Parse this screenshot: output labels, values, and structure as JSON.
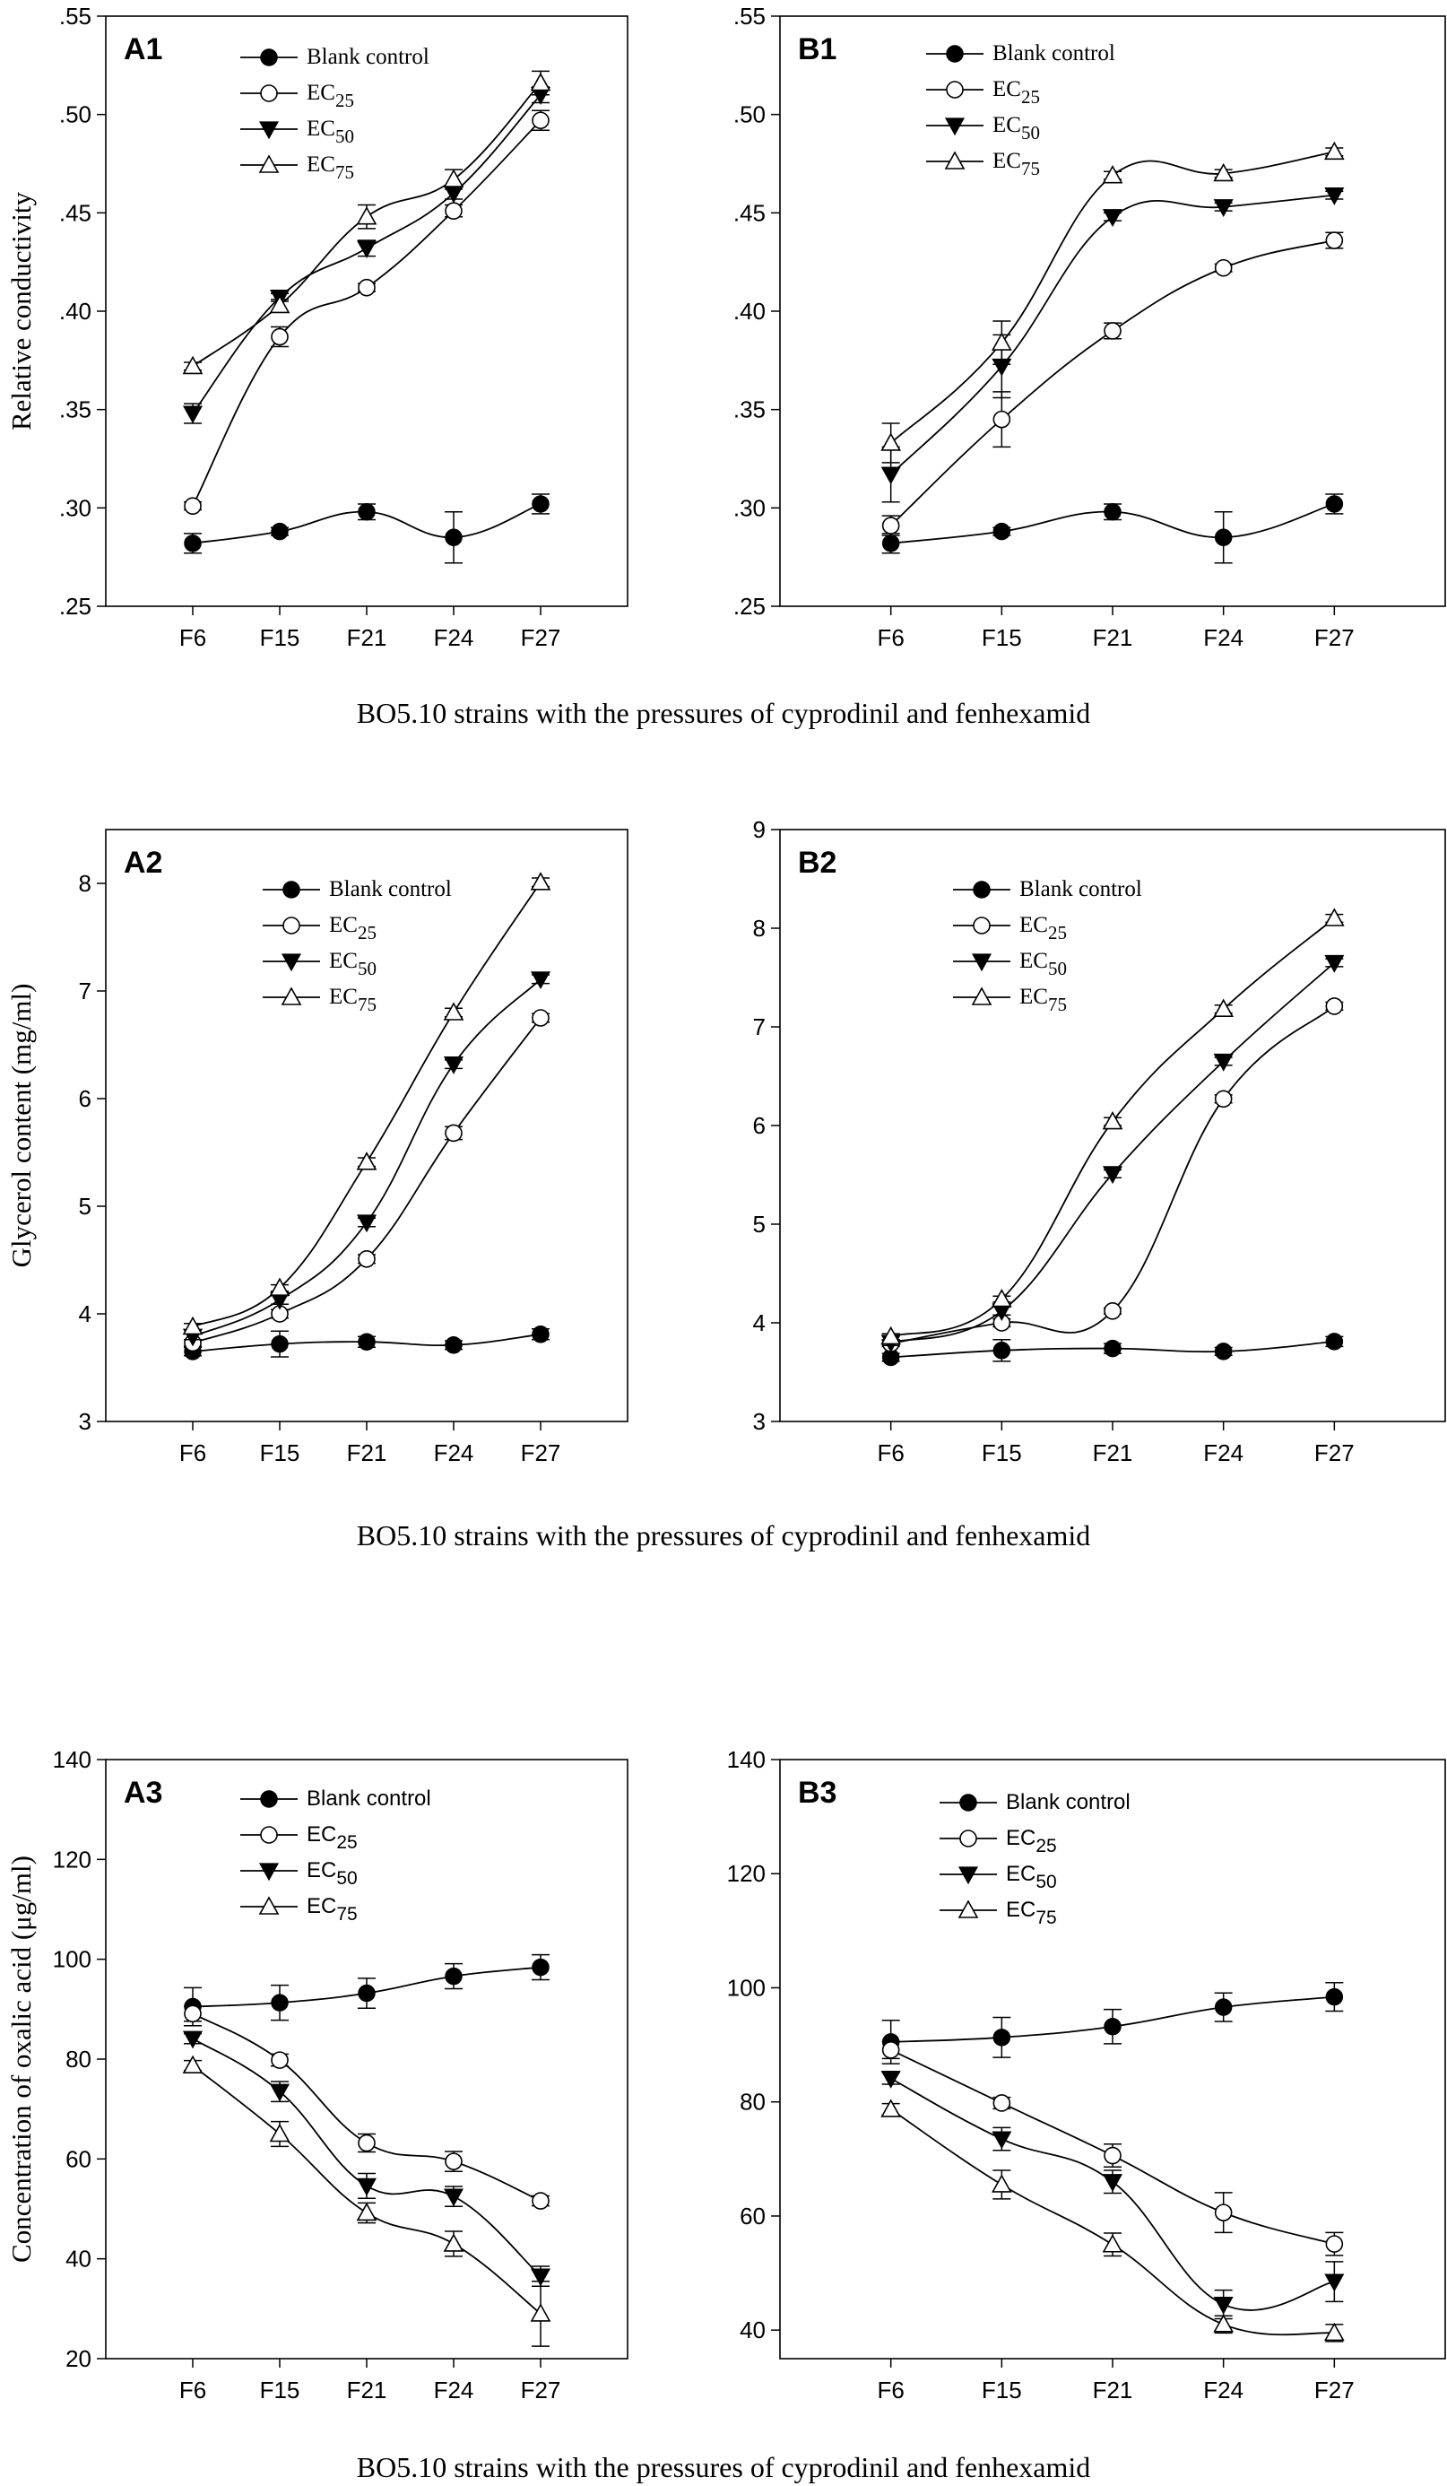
{
  "captions": {
    "row1": "BO5.10 strains with the pressures of  cyprodinil and fenhexamid",
    "row2": "BO5.10 strains with the pressures of  cyprodinil and fenhexamid",
    "row3": "BO5.10 strains with the pressures of  cyprodinil and fenhexamid"
  },
  "chart_data": [
    {
      "id": "A1",
      "type": "line",
      "title": "A1",
      "ylabel": "Relative conductivity",
      "xlabel": "",
      "categories": [
        "F6",
        "F15",
        "F21",
        "F24",
        "F27"
      ],
      "ylim": [
        0.25,
        0.55
      ],
      "yticks": [
        0.25,
        0.3,
        0.35,
        0.4,
        0.45,
        0.5,
        0.55
      ],
      "ytick_labels": [
        ".25",
        ".30",
        ".35",
        ".40",
        ".45",
        ".50",
        ".55"
      ],
      "legend_style": "serif",
      "series": [
        {
          "name": "Blank control",
          "base": "Blank control",
          "sub": "",
          "marker": "filled-circle",
          "values": [
            0.282,
            0.288,
            0.298,
            0.285,
            0.302
          ],
          "errors": [
            0.005,
            0.002,
            0.004,
            0.013,
            0.005
          ]
        },
        {
          "name": "EC25",
          "base": "EC",
          "sub": "25",
          "marker": "open-circle",
          "values": [
            0.301,
            0.387,
            0.412,
            0.451,
            0.497
          ],
          "errors": [
            0.002,
            0.005,
            0.002,
            0.003,
            0.005
          ]
        },
        {
          "name": "EC50",
          "base": "EC",
          "sub": "50",
          "marker": "filled-triangle-down",
          "values": [
            0.348,
            0.407,
            0.432,
            0.46,
            0.51
          ],
          "errors": [
            0.005,
            0.002,
            0.004,
            0.003,
            0.004
          ]
        },
        {
          "name": "EC75",
          "base": "EC",
          "sub": "75",
          "marker": "open-triangle-up",
          "values": [
            0.372,
            0.403,
            0.448,
            0.467,
            0.516
          ],
          "errors": [
            0.002,
            0.003,
            0.006,
            0.005,
            0.006
          ]
        }
      ]
    },
    {
      "id": "B1",
      "type": "line",
      "title": "B1",
      "ylabel": "",
      "xlabel": "",
      "categories": [
        "F6",
        "F15",
        "F21",
        "F24",
        "F27"
      ],
      "ylim": [
        0.25,
        0.55
      ],
      "yticks": [
        0.25,
        0.3,
        0.35,
        0.4,
        0.45,
        0.5,
        0.55
      ],
      "ytick_labels": [
        ".25",
        ".30",
        ".35",
        ".40",
        ".45",
        ".50",
        ".55"
      ],
      "legend_style": "serif",
      "series": [
        {
          "name": "Blank control",
          "base": "Blank control",
          "sub": "",
          "marker": "filled-circle",
          "values": [
            0.282,
            0.288,
            0.298,
            0.285,
            0.302
          ],
          "errors": [
            0.005,
            0.002,
            0.004,
            0.013,
            0.005
          ]
        },
        {
          "name": "EC25",
          "base": "EC",
          "sub": "25",
          "marker": "open-circle",
          "values": [
            0.291,
            0.345,
            0.39,
            0.422,
            0.436
          ],
          "errors": [
            0.005,
            0.014,
            0.004,
            0.002,
            0.004
          ]
        },
        {
          "name": "EC50",
          "base": "EC",
          "sub": "50",
          "marker": "filled-triangle-down",
          "values": [
            0.317,
            0.372,
            0.448,
            0.453,
            0.459
          ],
          "errors": [
            0.014,
            0.016,
            0.002,
            0.002,
            0.002
          ]
        },
        {
          "name": "EC75",
          "base": "EC",
          "sub": "75",
          "marker": "open-triangle-up",
          "values": [
            0.333,
            0.384,
            0.469,
            0.47,
            0.481
          ],
          "errors": [
            0.01,
            0.011,
            0.002,
            0.002,
            0.002
          ]
        }
      ]
    },
    {
      "id": "A2",
      "type": "line",
      "title": "A2",
      "ylabel": "Glycerol content (mg/ml)",
      "xlabel": "",
      "categories": [
        "F6",
        "F15",
        "F21",
        "F24",
        "F27"
      ],
      "ylim": [
        3,
        8.5
      ],
      "yticks": [
        3,
        4,
        5,
        6,
        7,
        8
      ],
      "ytick_labels": [
        "3",
        "4",
        "5",
        "6",
        "7",
        "8"
      ],
      "legend_style": "serif",
      "series": [
        {
          "name": "Blank control",
          "base": "Blank control",
          "sub": "",
          "marker": "filled-circle",
          "values": [
            3.65,
            3.72,
            3.74,
            3.71,
            3.81
          ],
          "errors": [
            0.04,
            0.12,
            0.05,
            0.04,
            0.05
          ]
        },
        {
          "name": "EC25",
          "base": "EC",
          "sub": "25",
          "marker": "open-circle",
          "values": [
            3.73,
            4.0,
            4.51,
            5.68,
            6.75
          ],
          "errors": [
            0.03,
            0.04,
            0.04,
            0.06,
            0.04
          ]
        },
        {
          "name": "EC50",
          "base": "EC",
          "sub": "50",
          "marker": "filled-triangle-down",
          "values": [
            3.79,
            4.13,
            4.85,
            6.32,
            7.11
          ],
          "errors": [
            0.03,
            0.04,
            0.04,
            0.04,
            0.04
          ]
        },
        {
          "name": "EC75",
          "base": "EC",
          "sub": "75",
          "marker": "open-triangle-up",
          "values": [
            3.88,
            4.24,
            5.41,
            6.8,
            8.01
          ],
          "errors": [
            0.03,
            0.03,
            0.04,
            0.04,
            0.04
          ]
        }
      ]
    },
    {
      "id": "B2",
      "type": "line",
      "title": "B2",
      "ylabel": "",
      "xlabel": "",
      "categories": [
        "F6",
        "F15",
        "F21",
        "F24",
        "F27"
      ],
      "ylim": [
        3,
        9
      ],
      "yticks": [
        3,
        4,
        5,
        6,
        7,
        8,
        9
      ],
      "ytick_labels": [
        "3",
        "4",
        "5",
        "6",
        "7",
        "8",
        "9"
      ],
      "legend_style": "serif",
      "series": [
        {
          "name": "Blank control",
          "base": "Blank control",
          "sub": "",
          "marker": "filled-circle",
          "values": [
            3.65,
            3.72,
            3.74,
            3.71,
            3.81
          ],
          "errors": [
            0.04,
            0.11,
            0.05,
            0.04,
            0.05
          ]
        },
        {
          "name": "EC25",
          "base": "EC",
          "sub": "25",
          "marker": "open-circle",
          "values": [
            3.79,
            4.0,
            4.12,
            6.27,
            7.21
          ],
          "errors": [
            0.03,
            0.04,
            0.03,
            0.04,
            0.04
          ]
        },
        {
          "name": "EC50",
          "base": "EC",
          "sub": "50",
          "marker": "filled-triangle-down",
          "values": [
            3.8,
            4.12,
            5.51,
            6.65,
            7.65
          ],
          "errors": [
            0.03,
            0.04,
            0.04,
            0.04,
            0.04
          ]
        },
        {
          "name": "EC75",
          "base": "EC",
          "sub": "75",
          "marker": "open-triangle-up",
          "values": [
            3.86,
            4.24,
            6.04,
            7.18,
            8.1
          ],
          "errors": [
            0.03,
            0.03,
            0.04,
            0.04,
            0.04
          ]
        }
      ]
    },
    {
      "id": "A3",
      "type": "line",
      "title": "A3",
      "ylabel": "Concentration of oxalic acid  (μg/ml)",
      "xlabel": "",
      "categories": [
        "F6",
        "F15",
        "F21",
        "F24",
        "F27"
      ],
      "ylim": [
        20,
        140
      ],
      "yticks": [
        20,
        40,
        60,
        80,
        100,
        120,
        140
      ],
      "ytick_labels": [
        "20",
        "40",
        "60",
        "80",
        "100",
        "120",
        "140"
      ],
      "legend_style": "sans",
      "series": [
        {
          "name": "Blank control",
          "base": "Blank control",
          "sub": "",
          "marker": "filled-circle",
          "values": [
            90.5,
            91.3,
            93.2,
            96.6,
            98.4
          ],
          "errors": [
            3.8,
            3.5,
            3.0,
            2.5,
            2.5
          ]
        },
        {
          "name": "EC25",
          "base": "EC",
          "sub": "25",
          "marker": "open-circle",
          "values": [
            89.1,
            79.8,
            63.2,
            59.5,
            51.6
          ],
          "errors": [
            1.5,
            1.2,
            1.8,
            2.0,
            1.0
          ]
        },
        {
          "name": "EC50",
          "base": "EC",
          "sub": "50",
          "marker": "filled-triangle-down",
          "values": [
            84.1,
            73.5,
            54.6,
            52.5,
            36.5
          ],
          "errors": [
            1.0,
            2.0,
            2.5,
            2.0,
            2.0
          ]
        },
        {
          "name": "EC75",
          "base": "EC",
          "sub": "75",
          "marker": "open-triangle-up",
          "values": [
            78.7,
            65.0,
            49.2,
            43.0,
            29.0
          ],
          "errors": [
            1.0,
            2.5,
            2.0,
            2.5,
            6.5
          ]
        }
      ]
    },
    {
      "id": "B3",
      "type": "line",
      "title": "B3",
      "ylabel": "",
      "xlabel": "",
      "categories": [
        "F6",
        "F15",
        "F21",
        "F24",
        "F27"
      ],
      "ylim": [
        35,
        140
      ],
      "yticks": [
        40,
        60,
        80,
        100,
        120,
        140
      ],
      "ytick_labels": [
        "40",
        "60",
        "80",
        "100",
        "120",
        "140"
      ],
      "legend_style": "sans",
      "series": [
        {
          "name": "Blank control",
          "base": "Blank control",
          "sub": "",
          "marker": "filled-circle",
          "values": [
            90.5,
            91.3,
            93.2,
            96.6,
            98.4
          ],
          "errors": [
            3.8,
            3.5,
            3.0,
            2.5,
            2.5
          ]
        },
        {
          "name": "EC25",
          "base": "EC",
          "sub": "25",
          "marker": "open-circle",
          "values": [
            89.1,
            79.8,
            70.6,
            60.6,
            55.1
          ],
          "errors": [
            1.5,
            1.0,
            2.0,
            3.5,
            2.0
          ]
        },
        {
          "name": "EC50",
          "base": "EC",
          "sub": "50",
          "marker": "filled-triangle-down",
          "values": [
            84.1,
            73.5,
            66.0,
            44.5,
            48.5
          ],
          "errors": [
            1.0,
            2.0,
            2.0,
            2.5,
            3.5
          ]
        },
        {
          "name": "EC75",
          "base": "EC",
          "sub": "75",
          "marker": "open-triangle-up",
          "values": [
            78.7,
            65.5,
            55.0,
            41.0,
            39.5
          ],
          "errors": [
            1.0,
            2.5,
            2.0,
            1.5,
            1.5
          ]
        }
      ]
    }
  ]
}
